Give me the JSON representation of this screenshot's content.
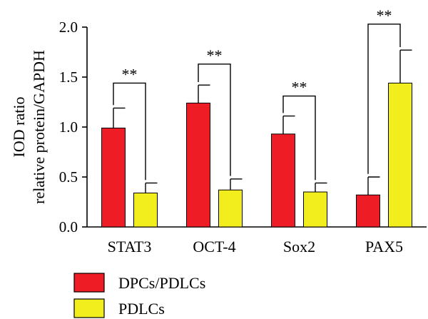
{
  "chart_data": {
    "type": "bar",
    "title": "",
    "ylabel_line1": "IOD ratio",
    "ylabel_line2": "relative protein/GAPDH",
    "xlabel": "",
    "ylim": [
      0,
      2.0
    ],
    "yticks": [
      "0.0",
      "0.5",
      "1.0",
      "1.5",
      "2.0"
    ],
    "ytick_values": [
      0,
      0.5,
      1.0,
      1.5,
      2.0
    ],
    "categories": [
      "STAT3",
      "OCT-4",
      "Sox2",
      "PAX5"
    ],
    "series": [
      {
        "name": "DPCs/PDLCs",
        "color": "#ee1c25",
        "values": [
          0.99,
          1.24,
          0.93,
          0.32
        ],
        "errors": [
          0.2,
          0.18,
          0.18,
          0.18
        ]
      },
      {
        "name": "PDLCs",
        "color": "#f2ee1d",
        "values": [
          0.34,
          0.37,
          0.35,
          1.44
        ],
        "errors": [
          0.1,
          0.11,
          0.09,
          0.33
        ]
      }
    ],
    "significance": [
      {
        "category": "STAT3",
        "label": "**",
        "bracket_y": 1.44
      },
      {
        "category": "OCT-4",
        "label": "**",
        "bracket_y": 1.63
      },
      {
        "category": "Sox2",
        "label": "**",
        "bracket_y": 1.31
      },
      {
        "category": "PAX5",
        "label": "**",
        "bracket_y": 2.03
      }
    ],
    "legend": {
      "placement": "bottom-left"
    },
    "grid": false
  }
}
